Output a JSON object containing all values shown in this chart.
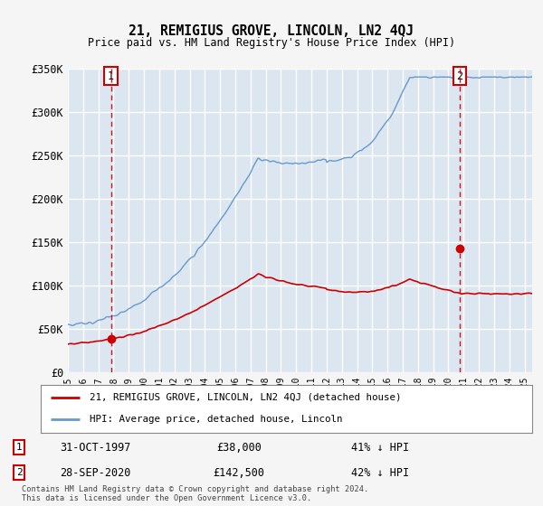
{
  "title": "21, REMIGIUS GROVE, LINCOLN, LN2 4QJ",
  "subtitle": "Price paid vs. HM Land Registry's House Price Index (HPI)",
  "ylim": [
    0,
    350000
  ],
  "yticks": [
    0,
    50000,
    100000,
    150000,
    200000,
    250000,
    300000,
    350000
  ],
  "ytick_labels": [
    "£0",
    "£50K",
    "£100K",
    "£150K",
    "£200K",
    "£250K",
    "£300K",
    "£350K"
  ],
  "xlim_start": 1995.25,
  "xlim_end": 2025.5,
  "point1": {
    "year": 1997.83,
    "price": 38000,
    "label": "1",
    "date": "31-OCT-1997",
    "amount": "£38,000",
    "pct": "41% ↓ HPI"
  },
  "point2": {
    "year": 2020.75,
    "price": 142500,
    "label": "2",
    "date": "28-SEP-2020",
    "amount": "£142,500",
    "pct": "42% ↓ HPI"
  },
  "legend_line1": "21, REMIGIUS GROVE, LINCOLN, LN2 4QJ (detached house)",
  "legend_line2": "HPI: Average price, detached house, Lincoln",
  "footer1": "Contains HM Land Registry data © Crown copyright and database right 2024.",
  "footer2": "This data is licensed under the Open Government Licence v3.0.",
  "red_line_color": "#cc0000",
  "blue_line_color": "#6699cc",
  "plot_bg": "#dce6f1",
  "fig_bg": "#f5f5f5",
  "dashed_color": "#cc0000"
}
